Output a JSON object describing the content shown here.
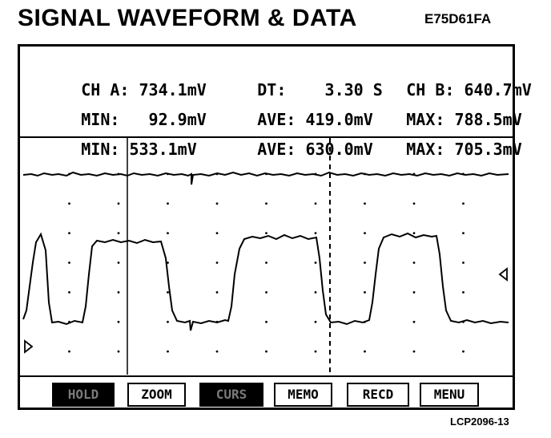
{
  "header": {
    "title": "SIGNAL WAVEFORM & DATA",
    "figure_code": "E75D61FA"
  },
  "footer": {
    "figure_ref": "LCP2096-13"
  },
  "readout": {
    "row1": {
      "ch_a": "CH A: 734.1mV",
      "dt": "DT:    3.30 S",
      "ch_b": "CH B: 640.7mV"
    },
    "row2": {
      "min": "MIN:   92.9mV",
      "ave": "AVE: 419.0mV",
      "max": "MAX: 788.5mV"
    },
    "row3": {
      "min": "MIN: 533.1mV",
      "ave": "AVE: 630.0mV",
      "max": "MAX: 705.3mV"
    }
  },
  "softkeys": [
    {
      "label": "HOLD",
      "active": true
    },
    {
      "label": "ZOOM",
      "active": false
    },
    {
      "label": "CURS",
      "active": true
    },
    {
      "label": "MEMO",
      "active": false
    },
    {
      "label": "RECD",
      "active": false
    },
    {
      "label": "MENU",
      "active": false
    }
  ],
  "colors": {
    "foreground": "#000000",
    "background": "#ffffff",
    "active_key_text": "#7a7a7a"
  },
  "icons": {
    "trace_b_marker": "triangle-left-icon",
    "trace_a_marker": "triangle-right-icon"
  }
}
